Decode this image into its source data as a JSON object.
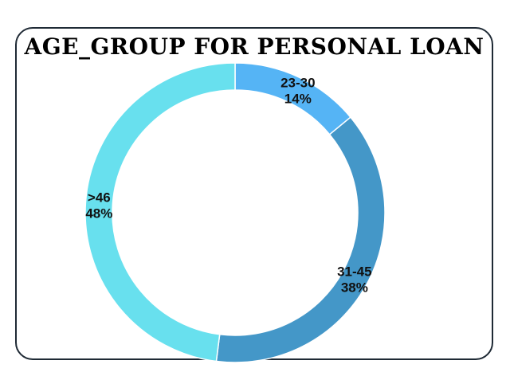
{
  "chart_data": {
    "type": "pie",
    "variant": "donut",
    "title": "AGE_GROUP FOR PERSONAL LOAN",
    "categories": [
      "23-30",
      "31-45",
      ">46"
    ],
    "values": [
      14,
      38,
      48
    ],
    "value_labels": [
      "14%",
      "38%",
      "48%"
    ],
    "colors": [
      "#55b4f5",
      "#4497c8",
      "#68e0ee"
    ],
    "slice_border_color": "#ffffff",
    "legend": "none"
  }
}
